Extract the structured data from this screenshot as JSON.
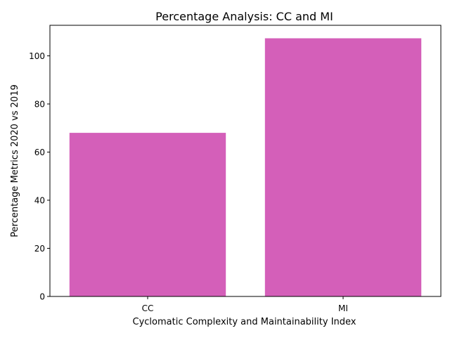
{
  "chart_data": {
    "type": "bar",
    "title": "Percentage Analysis: CC and MI",
    "xlabel": "Cyclomatic Complexity and Maintainability Index",
    "ylabel": "Percentage Metrics 2020 vs 2019",
    "categories": [
      "CC",
      "MI"
    ],
    "values": [
      68,
      107.3
    ],
    "ylim": [
      0,
      112.7
    ],
    "yticks": [
      0,
      20,
      40,
      60,
      80,
      100
    ],
    "bar_color": "#d45fb9",
    "grid": false,
    "legend": "none"
  }
}
